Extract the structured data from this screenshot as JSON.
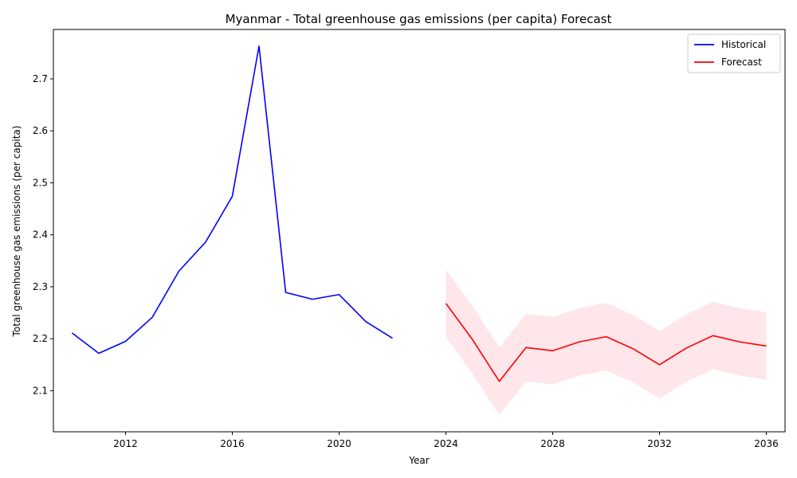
{
  "chart_data": {
    "type": "line",
    "title": "Myanmar - Total greenhouse gas emissions (per capita) Forecast",
    "xlabel": "Year",
    "ylabel": "Total greenhouse gas emissions (per capita)",
    "xlim": [
      2009.3,
      2036.7
    ],
    "ylim": [
      2.021,
      2.795
    ],
    "x_ticks": [
      2012,
      2016,
      2020,
      2024,
      2028,
      2032,
      2036
    ],
    "y_ticks": [
      2.1,
      2.2,
      2.3,
      2.4,
      2.5,
      2.6,
      2.7
    ],
    "grid": false,
    "legend_position": "top-right",
    "series": [
      {
        "name": "Historical",
        "color": "#0000ff",
        "x": [
          2010,
          2011,
          2012,
          2013,
          2014,
          2015,
          2016,
          2017,
          2018,
          2019,
          2020,
          2021,
          2022
        ],
        "values": [
          2.211,
          2.172,
          2.195,
          2.241,
          2.33,
          2.386,
          2.474,
          2.763,
          2.289,
          2.276,
          2.285,
          2.233,
          2.201
        ]
      },
      {
        "name": "Forecast",
        "color": "#ff0000",
        "x": [
          2024,
          2025,
          2026,
          2027,
          2028,
          2029,
          2030,
          2031,
          2032,
          2033,
          2034,
          2035,
          2036
        ],
        "values": [
          2.268,
          2.198,
          2.118,
          2.183,
          2.177,
          2.194,
          2.204,
          2.181,
          2.15,
          2.182,
          2.206,
          2.194,
          2.186
        ],
        "lower": [
          2.203,
          2.132,
          2.053,
          2.118,
          2.112,
          2.129,
          2.139,
          2.116,
          2.085,
          2.117,
          2.141,
          2.129,
          2.121
        ],
        "upper": [
          2.333,
          2.263,
          2.183,
          2.248,
          2.242,
          2.259,
          2.269,
          2.246,
          2.215,
          2.247,
          2.271,
          2.259,
          2.251
        ],
        "band_color": "#ffc0cb"
      }
    ]
  }
}
